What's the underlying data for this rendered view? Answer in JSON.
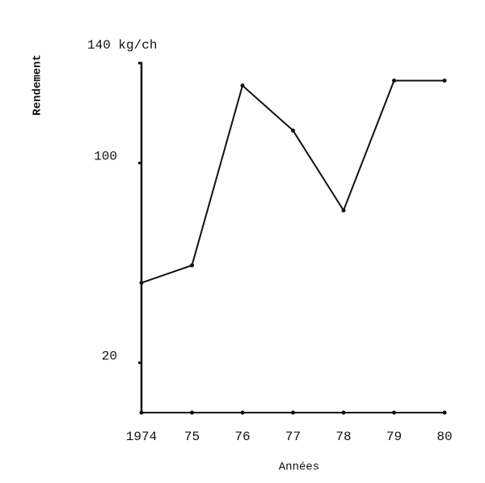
{
  "chart_data": {
    "type": "line",
    "y_label": "Rendement",
    "x_label": "Années",
    "categories": [
      "1974",
      "75",
      "76",
      "77",
      "78",
      "79",
      "80"
    ],
    "values": [
      52,
      59,
      131,
      113,
      81,
      133,
      133
    ],
    "color": "#111111",
    "ylim": [
      0,
      140
    ],
    "yticks": [
      20,
      100,
      {
        "value": 140,
        "label": "140 kg/ch"
      }
    ],
    "grid": false
  }
}
